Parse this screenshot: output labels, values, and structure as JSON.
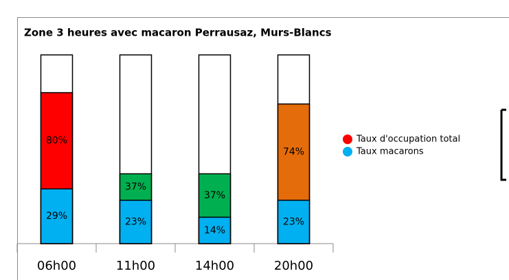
{
  "chart_data": {
    "type": "bar",
    "title": "Zone 3 heures avec macaron Perrausaz, Murs-Blancs",
    "categories": [
      "06h00",
      "11h00",
      "14h00",
      "20h00"
    ],
    "ylim": [
      0,
      100
    ],
    "legend": "right",
    "series": [
      {
        "name": "Taux d'occupation total",
        "color": "#ff0000",
        "colors": [
          "#ff0000",
          "#00b050",
          "#00b050",
          "#e46c0a"
        ],
        "values": [
          80,
          37,
          37,
          74
        ],
        "value_labels": [
          "80%",
          "37%",
          "37%",
          "74%"
        ]
      },
      {
        "name": "Taux macarons",
        "color": "#00b0f0",
        "values": [
          29,
          23,
          14,
          23
        ],
        "value_labels": [
          "29%",
          "23%",
          "14%",
          "23%"
        ]
      }
    ]
  }
}
